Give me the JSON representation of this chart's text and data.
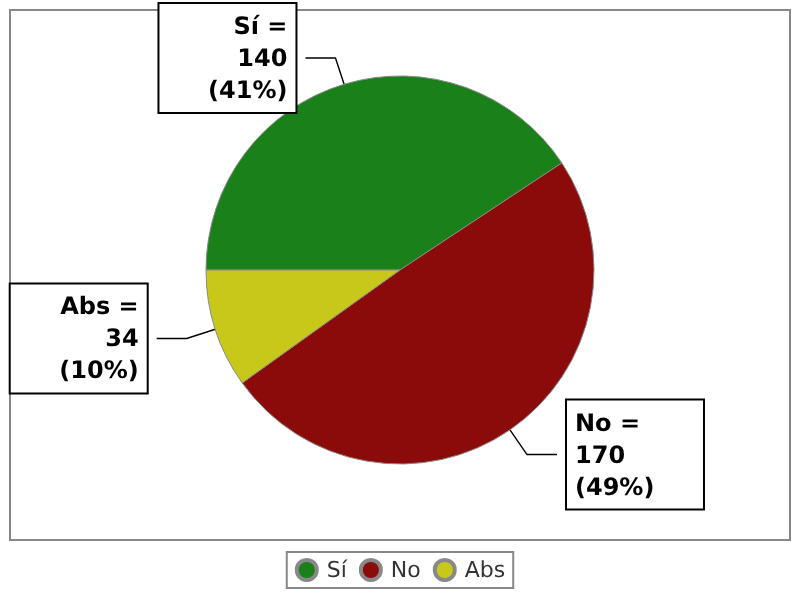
{
  "chart_data": {
    "type": "pie",
    "categories": [
      "Sí",
      "No",
      "Abs"
    ],
    "values": [
      140,
      170,
      34
    ],
    "colors": [
      "#1a801a",
      "#8b0a0a",
      "#c8c81a"
    ],
    "value_labels": [
      "Sí =\n140\n(41%)",
      "No =\n170\n(49%)",
      "Abs =\n34\n(10%)"
    ],
    "legend": "bottom"
  }
}
